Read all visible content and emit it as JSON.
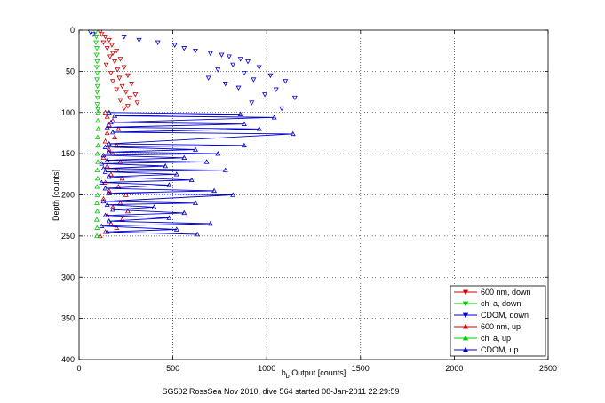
{
  "figure": {
    "footer": "SG502 RossSea Nov 2010, dive 564 started 08-Jan-2011 22:29:59"
  },
  "chart_data": {
    "type": "scatter",
    "title": "",
    "xlabel_main": "b",
    "xlabel_sub": "b",
    "xlabel_rest": " Output [counts]",
    "ylabel": "Depth [counts]",
    "xlim": [
      0,
      2500
    ],
    "ylim": [
      400,
      0
    ],
    "y_reversed": true,
    "grid": true,
    "legend_position": "bottom-right",
    "x_ticks": [
      0,
      500,
      1000,
      1500,
      2000,
      2500
    ],
    "y_ticks": [
      0,
      50,
      100,
      150,
      200,
      250,
      300,
      350,
      400
    ],
    "series": [
      {
        "name": "600 nm, down",
        "color": "#cc0000",
        "marker": "triangle-down",
        "connected": false,
        "points": [
          [
            112,
            2
          ],
          [
            120,
            5
          ],
          [
            140,
            8
          ],
          [
            160,
            12
          ],
          [
            130,
            15
          ],
          [
            175,
            18
          ],
          [
            150,
            22
          ],
          [
            200,
            25
          ],
          [
            180,
            28
          ],
          [
            165,
            32
          ],
          [
            220,
            35
          ],
          [
            190,
            38
          ],
          [
            145,
            42
          ],
          [
            240,
            45
          ],
          [
            205,
            48
          ],
          [
            170,
            52
          ],
          [
            260,
            55
          ],
          [
            215,
            58
          ],
          [
            180,
            62
          ],
          [
            280,
            65
          ],
          [
            230,
            68
          ],
          [
            200,
            72
          ],
          [
            250,
            75
          ],
          [
            300,
            78
          ],
          [
            270,
            82
          ],
          [
            220,
            85
          ],
          [
            310,
            88
          ],
          [
            260,
            92
          ],
          [
            240,
            95
          ]
        ]
      },
      {
        "name": "chl a, down",
        "color": "#00cc00",
        "marker": "triangle-down",
        "connected": false,
        "points": [
          [
            88,
            2
          ],
          [
            92,
            8
          ],
          [
            90,
            15
          ],
          [
            95,
            22
          ],
          [
            93,
            30
          ],
          [
            96,
            38
          ],
          [
            94,
            45
          ],
          [
            97,
            52
          ],
          [
            95,
            60
          ],
          [
            98,
            68
          ],
          [
            96,
            75
          ],
          [
            99,
            82
          ],
          [
            97,
            90
          ],
          [
            100,
            96
          ]
        ]
      },
      {
        "name": "CDOM, down",
        "color": "#0000cc",
        "marker": "triangle-down",
        "connected": false,
        "points": [
          [
            60,
            2
          ],
          [
            75,
            5
          ],
          [
            240,
            8
          ],
          [
            320,
            12
          ],
          [
            420,
            15
          ],
          [
            510,
            18
          ],
          [
            560,
            22
          ],
          [
            620,
            25
          ],
          [
            700,
            28
          ],
          [
            760,
            30
          ],
          [
            800,
            32
          ],
          [
            860,
            35
          ],
          [
            900,
            38
          ],
          [
            820,
            42
          ],
          [
            960,
            45
          ],
          [
            740,
            48
          ],
          [
            880,
            52
          ],
          [
            1020,
            55
          ],
          [
            690,
            58
          ],
          [
            930,
            60
          ],
          [
            1100,
            62
          ],
          [
            780,
            65
          ],
          [
            850,
            70
          ],
          [
            1050,
            72
          ],
          [
            990,
            78
          ],
          [
            1150,
            82
          ],
          [
            920,
            88
          ],
          [
            1080,
            95
          ]
        ]
      },
      {
        "name": "600 nm, up",
        "color": "#cc0000",
        "marker": "triangle-up",
        "connected": false,
        "points": [
          [
            112,
            250
          ],
          [
            140,
            245
          ],
          [
            200,
            240
          ],
          [
            170,
            235
          ],
          [
            230,
            230
          ],
          [
            150,
            225
          ],
          [
            260,
            220
          ],
          [
            180,
            215
          ],
          [
            220,
            210
          ],
          [
            130,
            205
          ],
          [
            250,
            200
          ],
          [
            160,
            195
          ],
          [
            210,
            190
          ],
          [
            140,
            185
          ],
          [
            230,
            180
          ],
          [
            170,
            175
          ],
          [
            200,
            170
          ],
          [
            150,
            165
          ],
          [
            220,
            160
          ],
          [
            130,
            155
          ],
          [
            180,
            150
          ],
          [
            160,
            145
          ],
          [
            200,
            140
          ],
          [
            140,
            135
          ],
          [
            190,
            130
          ],
          [
            150,
            125
          ],
          [
            210,
            120
          ],
          [
            160,
            115
          ],
          [
            180,
            110
          ],
          [
            150,
            105
          ],
          [
            140,
            100
          ]
        ]
      },
      {
        "name": "chl a, up",
        "color": "#00cc00",
        "marker": "triangle-up",
        "connected": false,
        "points": [
          [
            95,
            250
          ],
          [
            96,
            240
          ],
          [
            94,
            230
          ],
          [
            97,
            220
          ],
          [
            95,
            210
          ],
          [
            98,
            200
          ],
          [
            96,
            190
          ],
          [
            99,
            180
          ],
          [
            97,
            170
          ],
          [
            100,
            160
          ],
          [
            98,
            150
          ],
          [
            101,
            140
          ],
          [
            99,
            130
          ],
          [
            102,
            120
          ],
          [
            100,
            110
          ],
          [
            101,
            100
          ]
        ]
      },
      {
        "name": "CDOM, up",
        "color": "#0000cc",
        "marker": "triangle-up",
        "connected": true,
        "points": [
          [
            630,
            248
          ],
          [
            150,
            245
          ],
          [
            520,
            242
          ],
          [
            120,
            238
          ],
          [
            700,
            235
          ],
          [
            160,
            232
          ],
          [
            480,
            228
          ],
          [
            140,
            225
          ],
          [
            560,
            222
          ],
          [
            180,
            218
          ],
          [
            400,
            215
          ],
          [
            150,
            212
          ],
          [
            620,
            210
          ],
          [
            130,
            208
          ],
          [
            820,
            200
          ],
          [
            160,
            198
          ],
          [
            720,
            195
          ],
          [
            140,
            192
          ],
          [
            480,
            188
          ],
          [
            120,
            185
          ],
          [
            600,
            182
          ],
          [
            160,
            178
          ],
          [
            520,
            175
          ],
          [
            140,
            172
          ],
          [
            780,
            170
          ],
          [
            130,
            168
          ],
          [
            460,
            165
          ],
          [
            120,
            162
          ],
          [
            680,
            160
          ],
          [
            150,
            158
          ],
          [
            560,
            155
          ],
          [
            130,
            152
          ],
          [
            740,
            150
          ],
          [
            160,
            148
          ],
          [
            620,
            145
          ],
          [
            140,
            142
          ],
          [
            880,
            140
          ],
          [
            160,
            138
          ],
          [
            1140,
            126
          ],
          [
            180,
            124
          ],
          [
            960,
            120
          ],
          [
            150,
            118
          ],
          [
            880,
            114
          ],
          [
            170,
            112
          ],
          [
            1040,
            106
          ],
          [
            190,
            104
          ],
          [
            860,
            102
          ],
          [
            160,
            100
          ]
        ]
      }
    ]
  }
}
